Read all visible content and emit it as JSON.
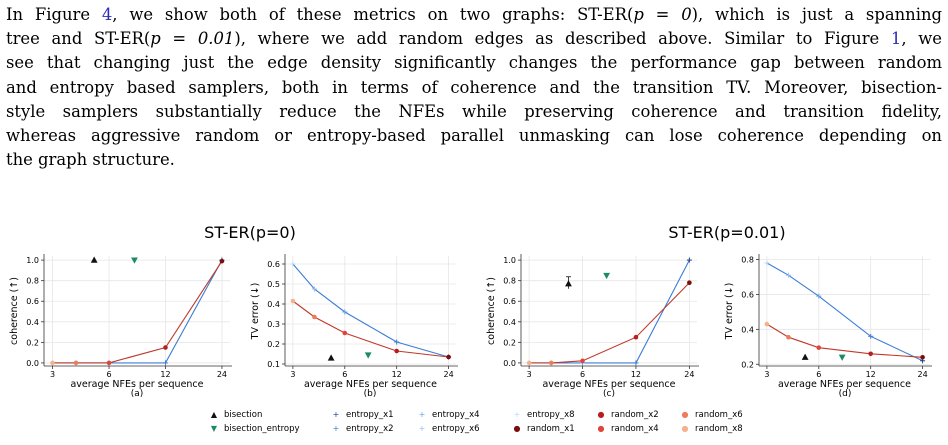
{
  "paragraph": {
    "lines": [
      [
        "In Figure ",
        {
          "ref": "4"
        },
        ", we show both of these metrics on two graphs: ST-ER(",
        {
          "math": "p = 0"
        },
        "), which is just a spanning"
      ],
      [
        "tree and ST-ER(",
        {
          "math": "p = 0.01"
        },
        "), where we add random edges as described above. Similar to Figure ",
        {
          "ref": "1"
        },
        ", we"
      ],
      [
        "see that changing just the edge density significantly changes the performance gap between random"
      ],
      [
        "and entropy based samplers, both in terms of coherence and the transition TV. Moreover, bisection-"
      ],
      [
        "style samplers substantially reduce the NFEs while preserving coherence and transition fidelity,"
      ],
      [
        "whereas aggressive random or entropy-based parallel unmasking can lose coherence depending on"
      ],
      [
        "the graph structure."
      ]
    ]
  },
  "figure": {
    "group_titles": [
      "ST-ER(p=0)",
      "ST-ER(p=0.01)"
    ],
    "xlabel": "average NFEs per sequence",
    "subcaptions": [
      "(a)",
      "(b)",
      "(c)",
      "(d)"
    ],
    "colors": {
      "bisection": "#111111",
      "bisection_entropy": "#1b8a6b",
      "entropy": "#3b7dd8",
      "random": "#c0392b"
    },
    "legend": [
      {
        "label": "bisection",
        "symbol": "▲",
        "color": "#111111"
      },
      {
        "label": "bisection_entropy",
        "symbol": "▼",
        "color": "#1b8a6b"
      },
      {
        "label": "entropy_x1",
        "symbol": "+",
        "color": "#1f3f8a"
      },
      {
        "label": "entropy_x2",
        "symbol": "+",
        "color": "#3b7dd8"
      },
      {
        "label": "entropy_x4",
        "symbol": "+",
        "color": "#6aa3e8"
      },
      {
        "label": "entropy_x6",
        "symbol": "+",
        "color": "#93bff0"
      },
      {
        "label": "entropy_x8",
        "symbol": "+",
        "color": "#bcd7f5"
      },
      {
        "label": "random_x1",
        "symbol": "●",
        "color": "#7a0d0d"
      },
      {
        "label": "random_x2",
        "symbol": "●",
        "color": "#b51f1f"
      },
      {
        "label": "random_x4",
        "symbol": "●",
        "color": "#e0443a"
      },
      {
        "label": "random_x6",
        "symbol": "●",
        "color": "#ef7b5a"
      },
      {
        "label": "random_x8",
        "symbol": "●",
        "color": "#f5b08c"
      }
    ]
  },
  "chart_data": [
    {
      "type": "line",
      "panel": "(a)",
      "group": "ST-ER(p=0)",
      "xlabel": "average NFEs per sequence",
      "ylabel": "coherence (↑)",
      "xscale": "log",
      "xticks": [
        3,
        6,
        12,
        24
      ],
      "yticks": [
        0.0,
        0.2,
        0.4,
        0.6,
        0.8,
        1.0
      ],
      "ylim": [
        -0.03,
        1.04
      ],
      "grid": true,
      "series": [
        {
          "name": "entropy",
          "x": [
            3,
            4,
            6,
            12,
            24
          ],
          "y": [
            0.0,
            0.0,
            0.0,
            0.0,
            1.0
          ]
        },
        {
          "name": "random",
          "x": [
            3,
            4,
            6,
            12,
            24
          ],
          "y": [
            0.0,
            0.0,
            0.0,
            0.15,
            0.99
          ]
        },
        {
          "name": "bisection",
          "x": [
            5
          ],
          "y": [
            1.0
          ]
        },
        {
          "name": "bisection_entropy",
          "x": [
            8.2
          ],
          "y": [
            1.0
          ]
        }
      ]
    },
    {
      "type": "line",
      "panel": "(b)",
      "group": "ST-ER(p=0)",
      "xlabel": "average NFEs per sequence",
      "ylabel": "TV error (↓)",
      "xscale": "log",
      "xticks": [
        3,
        6,
        12,
        24
      ],
      "yticks": [
        0.1,
        0.2,
        0.3,
        0.4,
        0.5,
        0.6
      ],
      "ylim": [
        0.09,
        0.64
      ],
      "grid": true,
      "series": [
        {
          "name": "entropy",
          "x": [
            3,
            4,
            6,
            12,
            24
          ],
          "y": [
            0.6,
            0.475,
            0.36,
            0.21,
            0.135
          ]
        },
        {
          "name": "random",
          "x": [
            3,
            4,
            6,
            12,
            24
          ],
          "y": [
            0.415,
            0.335,
            0.255,
            0.165,
            0.135
          ]
        },
        {
          "name": "bisection",
          "x": [
            5
          ],
          "y": [
            0.13
          ]
        },
        {
          "name": "bisection_entropy",
          "x": [
            8.2
          ],
          "y": [
            0.145
          ]
        }
      ]
    },
    {
      "type": "line",
      "panel": "(c)",
      "group": "ST-ER(p=0.01)",
      "xlabel": "average NFEs per sequence",
      "ylabel": "coherence (↑)",
      "xscale": "log",
      "xticks": [
        3,
        6,
        12,
        24
      ],
      "yticks": [
        0.0,
        0.2,
        0.4,
        0.6,
        0.8,
        1.0
      ],
      "ylim": [
        -0.03,
        1.04
      ],
      "grid": true,
      "series": [
        {
          "name": "entropy",
          "x": [
            3,
            4,
            6,
            12,
            24
          ],
          "y": [
            0.0,
            0.0,
            0.0,
            0.0,
            1.0
          ]
        },
        {
          "name": "random",
          "x": [
            3,
            4,
            6,
            12,
            24
          ],
          "y": [
            0.0,
            0.0,
            0.02,
            0.25,
            0.78
          ]
        },
        {
          "name": "bisection",
          "x": [
            5
          ],
          "y": [
            0.77
          ]
        },
        {
          "name": "bisection_entropy",
          "x": [
            8.2
          ],
          "y": [
            0.85
          ]
        }
      ]
    },
    {
      "type": "line",
      "panel": "(d)",
      "group": "ST-ER(p=0.01)",
      "xlabel": "average NFEs per sequence",
      "ylabel": "TV error (↓)",
      "xscale": "log",
      "xticks": [
        3,
        6,
        12,
        24
      ],
      "yticks": [
        0.2,
        0.4,
        0.6,
        0.8
      ],
      "ylim": [
        0.19,
        0.82
      ],
      "grid": true,
      "series": [
        {
          "name": "entropy",
          "x": [
            3,
            4,
            6,
            12,
            24
          ],
          "y": [
            0.78,
            0.71,
            0.59,
            0.36,
            0.22
          ]
        },
        {
          "name": "random",
          "x": [
            3,
            4,
            6,
            12,
            24
          ],
          "y": [
            0.43,
            0.355,
            0.295,
            0.26,
            0.24
          ]
        },
        {
          "name": "bisection",
          "x": [
            5
          ],
          "y": [
            0.24
          ]
        },
        {
          "name": "bisection_entropy",
          "x": [
            8.2
          ],
          "y": [
            0.24
          ]
        }
      ]
    }
  ]
}
